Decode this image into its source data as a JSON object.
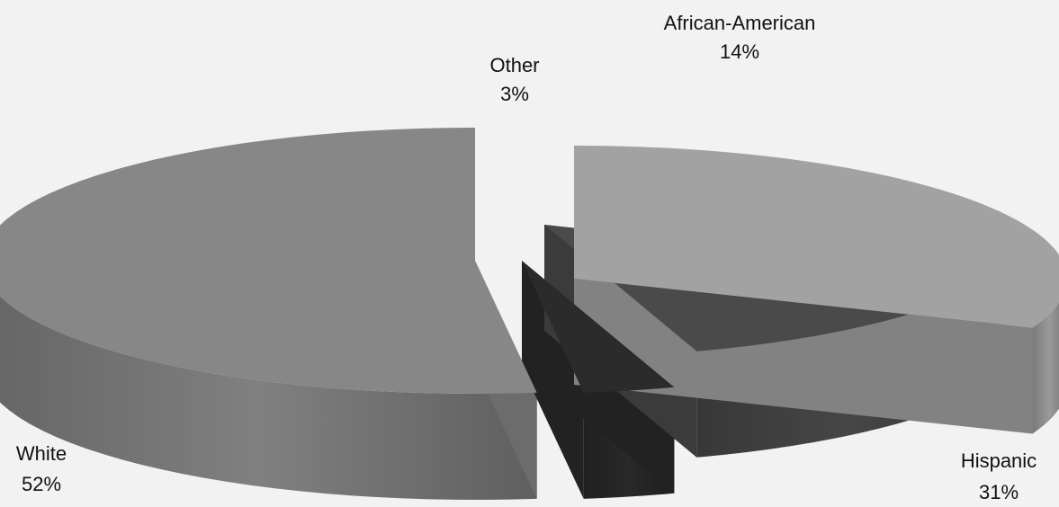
{
  "chart_data": {
    "type": "pie",
    "title": "",
    "categories": [
      "White",
      "Other",
      "African-American",
      "Hispanic"
    ],
    "values": [
      52,
      3,
      14,
      31
    ],
    "slices": [
      {
        "label": "White",
        "value_label": "52%",
        "value": 52,
        "color": "#878787"
      },
      {
        "label": "Other",
        "value_label": "3%",
        "value": 3,
        "color": "#2b2b2b"
      },
      {
        "label": "African-American",
        "value_label": "14%",
        "value": 14,
        "color": "#4a4a4a"
      },
      {
        "label": "Hispanic",
        "value_label": "31%",
        "value": 31,
        "color": "#a2a2a2"
      }
    ],
    "style": "3d-exploded",
    "legend": "none",
    "grid": false
  }
}
